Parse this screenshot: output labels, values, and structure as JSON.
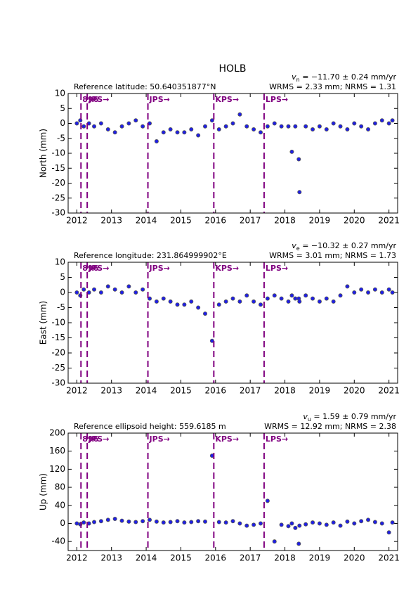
{
  "chart_data": [
    {
      "type": "scatter",
      "title": "HOLB",
      "ylabel": "North (mm)",
      "reference": "Reference latitude: 50.640351877°N",
      "velocity_symbol": "v",
      "velocity_subscript": "n",
      "velocity_text": " = −11.70 ± 0.24 mm/yr",
      "stats": "WRMS = 2.33 mm; NRMS = 1.31",
      "color": "#1f1fe6",
      "xlim": [
        2011.75,
        2021.25
      ],
      "xticks": [
        2012,
        2013,
        2014,
        2015,
        2016,
        2017,
        2018,
        2019,
        2020,
        2021
      ],
      "ylim": [
        -30,
        10
      ],
      "yticks": [
        10,
        5,
        0,
        -5,
        -10,
        -15,
        -20,
        -25,
        -30
      ],
      "events": [
        {
          "x": 2012.12,
          "label": "896"
        },
        {
          "x": 2012.3,
          "label": "JPS→"
        },
        {
          "x": 2014.05,
          "label": "JPS→"
        },
        {
          "x": 2015.95,
          "label": "KPS→"
        },
        {
          "x": 2017.4,
          "label": "LPS→"
        }
      ],
      "x": [
        2012.0,
        2012.1,
        2012.2,
        2012.35,
        2012.5,
        2012.7,
        2012.9,
        2013.1,
        2013.3,
        2013.5,
        2013.7,
        2013.9,
        2014.1,
        2014.3,
        2014.5,
        2014.7,
        2014.9,
        2015.1,
        2015.3,
        2015.5,
        2015.7,
        2015.9,
        2016.1,
        2016.3,
        2016.5,
        2016.7,
        2016.9,
        2017.1,
        2017.3,
        2017.5,
        2017.7,
        2017.9,
        2018.1,
        2018.2,
        2018.3,
        2018.4,
        2018.42,
        2018.6,
        2018.8,
        2019.0,
        2019.2,
        2019.4,
        2019.6,
        2019.8,
        2020.0,
        2020.2,
        2020.4,
        2020.6,
        2020.8,
        2021.0,
        2021.1
      ],
      "values": [
        0,
        1,
        -1,
        0,
        -1,
        0,
        -2,
        -3,
        -1,
        0,
        1,
        -1,
        0,
        -6,
        -3,
        -2,
        -3,
        -3,
        -2,
        -4,
        -1,
        1,
        -2,
        -1,
        0,
        3,
        -1,
        -2,
        -3,
        -1,
        0,
        -1,
        -1,
        -9.5,
        -1,
        -12,
        -23,
        -1,
        -2,
        -1,
        -2,
        0,
        -1,
        -2,
        0,
        -1,
        -2,
        0,
        1,
        0,
        1
      ]
    },
    {
      "type": "scatter",
      "ylabel": "East (mm)",
      "reference": "Reference longitude: 231.864999902°E",
      "velocity_symbol": "v",
      "velocity_subscript": "e",
      "velocity_text": " = −10.32 ± 0.27 mm/yr",
      "stats": "WRMS = 3.01 mm; NRMS = 1.73",
      "color": "#1f1fe6",
      "xlim": [
        2011.75,
        2021.25
      ],
      "xticks": [
        2012,
        2013,
        2014,
        2015,
        2016,
        2017,
        2018,
        2019,
        2020,
        2021
      ],
      "ylim": [
        -30,
        10
      ],
      "yticks": [
        10,
        5,
        0,
        -5,
        -10,
        -15,
        -20,
        -25,
        -30
      ],
      "events": [
        {
          "x": 2012.12,
          "label": "896"
        },
        {
          "x": 2012.3,
          "label": "JPS→"
        },
        {
          "x": 2014.05,
          "label": "JPS→"
        },
        {
          "x": 2015.95,
          "label": "KPS→"
        },
        {
          "x": 2017.4,
          "label": "LPS→"
        }
      ],
      "x": [
        2012.0,
        2012.1,
        2012.2,
        2012.35,
        2012.5,
        2012.7,
        2012.9,
        2013.1,
        2013.3,
        2013.5,
        2013.7,
        2013.9,
        2014.1,
        2014.3,
        2014.5,
        2014.7,
        2014.9,
        2015.1,
        2015.3,
        2015.5,
        2015.7,
        2015.9,
        2016.1,
        2016.3,
        2016.5,
        2016.7,
        2016.9,
        2017.1,
        2017.3,
        2017.5,
        2017.7,
        2017.9,
        2018.1,
        2018.2,
        2018.3,
        2018.4,
        2018.42,
        2018.6,
        2018.8,
        2019.0,
        2019.2,
        2019.4,
        2019.6,
        2019.8,
        2020.0,
        2020.2,
        2020.4,
        2020.6,
        2020.8,
        2021.0,
        2021.1
      ],
      "values": [
        0,
        -1,
        1,
        0,
        1,
        0,
        2,
        1,
        0,
        2,
        0,
        1,
        -2,
        -3,
        -2,
        -3,
        -4,
        -4,
        -3,
        -5,
        -7,
        -16,
        -4,
        -3,
        -2,
        -3,
        -1,
        -3,
        -4,
        -2,
        -1,
        -2,
        -3,
        -1,
        -2,
        -2,
        -3,
        -1,
        -2,
        -3,
        -2,
        -3,
        -1,
        2,
        0,
        1,
        0,
        1,
        0,
        1,
        0
      ]
    },
    {
      "type": "scatter",
      "ylabel": "Up (mm)",
      "reference": "Reference ellipsoid height: 559.6185 m",
      "velocity_symbol": "v",
      "velocity_subscript": "u",
      "velocity_text": " = 1.59 ± 0.79 mm/yr",
      "stats": "WRMS = 12.92 mm; NRMS = 2.38",
      "color": "#1f1fe6",
      "xlim": [
        2011.75,
        2021.25
      ],
      "xticks": [
        2012,
        2013,
        2014,
        2015,
        2016,
        2017,
        2018,
        2019,
        2020,
        2021
      ],
      "ylim": [
        -60,
        200
      ],
      "yticks": [
        200,
        160,
        120,
        80,
        40,
        0,
        -40
      ],
      "events": [
        {
          "x": 2012.12,
          "label": "896"
        },
        {
          "x": 2012.3,
          "label": "JPS→"
        },
        {
          "x": 2014.05,
          "label": "JPS→"
        },
        {
          "x": 2015.95,
          "label": "KPS→"
        },
        {
          "x": 2017.4,
          "label": "LPS→"
        }
      ],
      "x": [
        2012.0,
        2012.1,
        2012.2,
        2012.35,
        2012.5,
        2012.7,
        2012.9,
        2013.1,
        2013.3,
        2013.5,
        2013.7,
        2013.9,
        2014.1,
        2014.3,
        2014.5,
        2014.7,
        2014.9,
        2015.1,
        2015.3,
        2015.5,
        2015.7,
        2015.9,
        2016.1,
        2016.3,
        2016.5,
        2016.7,
        2016.9,
        2017.1,
        2017.3,
        2017.5,
        2017.7,
        2017.9,
        2018.1,
        2018.2,
        2018.3,
        2018.4,
        2018.42,
        2018.6,
        2018.8,
        2019.0,
        2019.2,
        2019.4,
        2019.6,
        2019.8,
        2020.0,
        2020.2,
        2020.4,
        2020.6,
        2020.8,
        2021.0,
        2021.1
      ],
      "values": [
        0,
        -2,
        2,
        0,
        3,
        5,
        8,
        10,
        6,
        4,
        3,
        5,
        8,
        4,
        2,
        3,
        5,
        2,
        3,
        5,
        4,
        150,
        3,
        2,
        5,
        0,
        -5,
        -3,
        0,
        50,
        -40,
        -3,
        -6,
        0,
        -10,
        -45,
        -5,
        -2,
        2,
        0,
        -3,
        2,
        -5,
        4,
        0,
        5,
        8,
        3,
        0,
        -20,
        2
      ]
    }
  ]
}
